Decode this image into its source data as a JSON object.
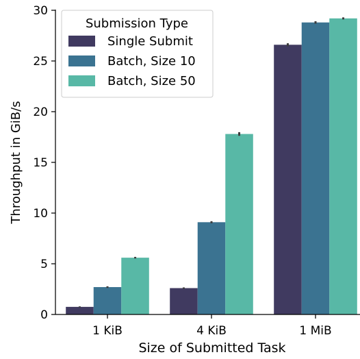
{
  "chart_data": {
    "type": "bar",
    "title": "",
    "xlabel": "Size of Submitted Task",
    "ylabel": "Throughput in GiB/s",
    "categories": [
      "1 KiB",
      "4 KiB",
      "1 MiB"
    ],
    "ylim": [
      0,
      30
    ],
    "yticks": [
      0,
      5,
      10,
      15,
      20,
      25,
      30
    ],
    "grid": false,
    "legend": {
      "title": "Submission Type",
      "placement": "top-left"
    },
    "series": [
      {
        "name": "Single Submit",
        "color": "#403a60",
        "values": [
          0.75,
          2.6,
          26.6
        ],
        "error": [
          0.05,
          0.07,
          0.15
        ]
      },
      {
        "name": "Batch, Size 10",
        "color": "#3b7391",
        "values": [
          2.7,
          9.1,
          28.8
        ],
        "error": [
          0.08,
          0.1,
          0.12
        ]
      },
      {
        "name": "Batch, Size 50",
        "color": "#58b8a6",
        "values": [
          5.6,
          17.8,
          29.2
        ],
        "error": [
          0.08,
          0.18,
          0.1
        ]
      }
    ]
  }
}
